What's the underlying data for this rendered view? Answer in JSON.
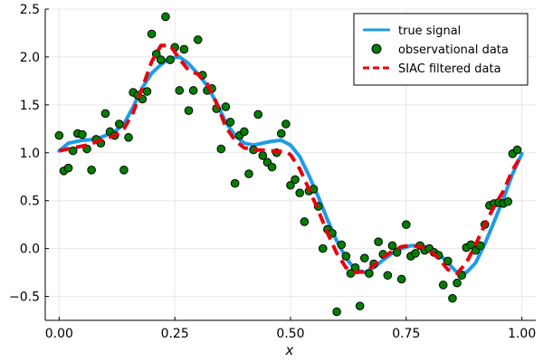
{
  "chart_data": {
    "type": "line",
    "title": "",
    "xlabel": "x",
    "ylabel": "",
    "xlim": [
      -0.03,
      1.03
    ],
    "ylim": [
      -0.75,
      2.5
    ],
    "xticks": [
      0.0,
      0.25,
      0.5,
      0.75,
      1.0
    ],
    "xtick_labels": [
      "0.00",
      "0.25",
      "0.50",
      "0.75",
      "1.00"
    ],
    "yticks": [
      -0.5,
      0.0,
      0.5,
      1.0,
      1.5,
      2.0,
      2.5
    ],
    "ytick_labels": [
      "−0.5",
      "0.0",
      "0.5",
      "1.0",
      "1.5",
      "2.0",
      "2.5"
    ],
    "grid": true,
    "legend_position": "top-right",
    "series": [
      {
        "name": "true signal",
        "style": "line",
        "color": "#1e9be8",
        "x": [
          0.0,
          0.02,
          0.05,
          0.08,
          0.1,
          0.12,
          0.14,
          0.16,
          0.18,
          0.2,
          0.22,
          0.24,
          0.26,
          0.28,
          0.3,
          0.32,
          0.34,
          0.36,
          0.38,
          0.4,
          0.42,
          0.44,
          0.46,
          0.48,
          0.5,
          0.52,
          0.54,
          0.56,
          0.58,
          0.6,
          0.62,
          0.64,
          0.66,
          0.68,
          0.7,
          0.72,
          0.74,
          0.76,
          0.78,
          0.8,
          0.82,
          0.84,
          0.86,
          0.88,
          0.9,
          0.92,
          0.94,
          0.96,
          0.98,
          1.0
        ],
        "y": [
          1.02,
          1.1,
          1.13,
          1.14,
          1.18,
          1.22,
          1.3,
          1.48,
          1.68,
          1.83,
          1.92,
          1.99,
          2.0,
          1.93,
          1.82,
          1.7,
          1.52,
          1.32,
          1.18,
          1.1,
          1.08,
          1.1,
          1.12,
          1.13,
          1.08,
          0.96,
          0.76,
          0.54,
          0.3,
          0.08,
          -0.1,
          -0.22,
          -0.25,
          -0.2,
          -0.12,
          -0.05,
          0.0,
          0.03,
          0.03,
          0.01,
          -0.05,
          -0.15,
          -0.25,
          -0.25,
          -0.15,
          0.05,
          0.28,
          0.52,
          0.78,
          0.99
        ]
      },
      {
        "name": "observational data",
        "style": "scatter",
        "color": "#008000",
        "x": [
          0.0,
          0.01,
          0.02,
          0.03,
          0.04,
          0.05,
          0.06,
          0.07,
          0.08,
          0.09,
          0.1,
          0.11,
          0.12,
          0.13,
          0.14,
          0.15,
          0.16,
          0.17,
          0.18,
          0.19,
          0.2,
          0.21,
          0.22,
          0.23,
          0.24,
          0.25,
          0.26,
          0.27,
          0.28,
          0.29,
          0.3,
          0.31,
          0.32,
          0.33,
          0.34,
          0.35,
          0.36,
          0.37,
          0.38,
          0.39,
          0.4,
          0.41,
          0.42,
          0.43,
          0.44,
          0.45,
          0.46,
          0.47,
          0.48,
          0.49,
          0.5,
          0.51,
          0.52,
          0.53,
          0.54,
          0.55,
          0.56,
          0.57,
          0.58,
          0.59,
          0.6,
          0.61,
          0.62,
          0.63,
          0.64,
          0.65,
          0.66,
          0.67,
          0.68,
          0.69,
          0.7,
          0.71,
          0.72,
          0.73,
          0.74,
          0.75,
          0.76,
          0.77,
          0.78,
          0.79,
          0.8,
          0.81,
          0.82,
          0.83,
          0.84,
          0.85,
          0.86,
          0.87,
          0.88,
          0.89,
          0.9,
          0.91,
          0.92,
          0.93,
          0.94,
          0.95,
          0.96,
          0.97,
          0.98,
          0.99
        ],
        "y": [
          1.18,
          0.81,
          0.84,
          1.02,
          1.2,
          1.19,
          1.04,
          0.82,
          1.14,
          1.1,
          1.41,
          1.22,
          1.18,
          1.3,
          0.82,
          1.16,
          1.63,
          1.6,
          1.56,
          1.64,
          2.24,
          2.03,
          1.97,
          2.42,
          1.97,
          2.1,
          1.65,
          2.08,
          1.44,
          1.65,
          2.18,
          1.81,
          1.65,
          1.67,
          1.46,
          1.04,
          1.48,
          1.32,
          0.68,
          1.18,
          1.22,
          0.78,
          1.03,
          1.4,
          0.97,
          0.9,
          0.85,
          1.0,
          1.2,
          1.3,
          0.66,
          0.72,
          0.58,
          0.28,
          0.6,
          0.62,
          0.44,
          0.0,
          0.2,
          0.16,
          -0.66,
          0.04,
          -0.08,
          -0.26,
          -0.2,
          -0.6,
          -0.1,
          -0.26,
          -0.16,
          0.07,
          -0.06,
          -0.28,
          0.03,
          -0.04,
          -0.32,
          0.25,
          -0.08,
          -0.05,
          0.03,
          -0.02,
          0.0,
          -0.04,
          -0.07,
          -0.38,
          -0.13,
          -0.52,
          -0.36,
          -0.28,
          0.01,
          0.04,
          -0.02,
          0.03,
          0.25,
          0.45,
          0.47,
          0.48,
          0.47,
          0.49,
          0.99,
          1.03
        ]
      },
      {
        "name": "SIAC filtered data",
        "style": "dashed",
        "color": "#e8000b",
        "x": [
          0.0,
          0.03,
          0.06,
          0.09,
          0.12,
          0.14,
          0.16,
          0.18,
          0.2,
          0.22,
          0.24,
          0.26,
          0.28,
          0.3,
          0.32,
          0.34,
          0.36,
          0.38,
          0.4,
          0.43,
          0.46,
          0.49,
          0.5,
          0.52,
          0.54,
          0.56,
          0.58,
          0.6,
          0.62,
          0.64,
          0.66,
          0.68,
          0.7,
          0.72,
          0.74,
          0.76,
          0.78,
          0.8,
          0.82,
          0.84,
          0.86,
          0.88,
          0.9,
          0.92,
          0.94,
          0.96,
          0.98,
          1.0
        ],
        "y": [
          1.02,
          1.05,
          1.08,
          1.13,
          1.18,
          1.25,
          1.42,
          1.68,
          1.95,
          2.12,
          2.12,
          1.98,
          1.86,
          1.82,
          1.72,
          1.52,
          1.27,
          1.13,
          1.05,
          1.03,
          1.02,
          1.01,
          0.98,
          0.83,
          0.62,
          0.4,
          0.16,
          -0.05,
          -0.2,
          -0.25,
          -0.24,
          -0.18,
          -0.09,
          -0.03,
          0.02,
          0.03,
          0.02,
          -0.02,
          -0.1,
          -0.22,
          -0.26,
          -0.15,
          0.04,
          0.25,
          0.44,
          0.6,
          0.82,
          0.98
        ]
      }
    ]
  }
}
